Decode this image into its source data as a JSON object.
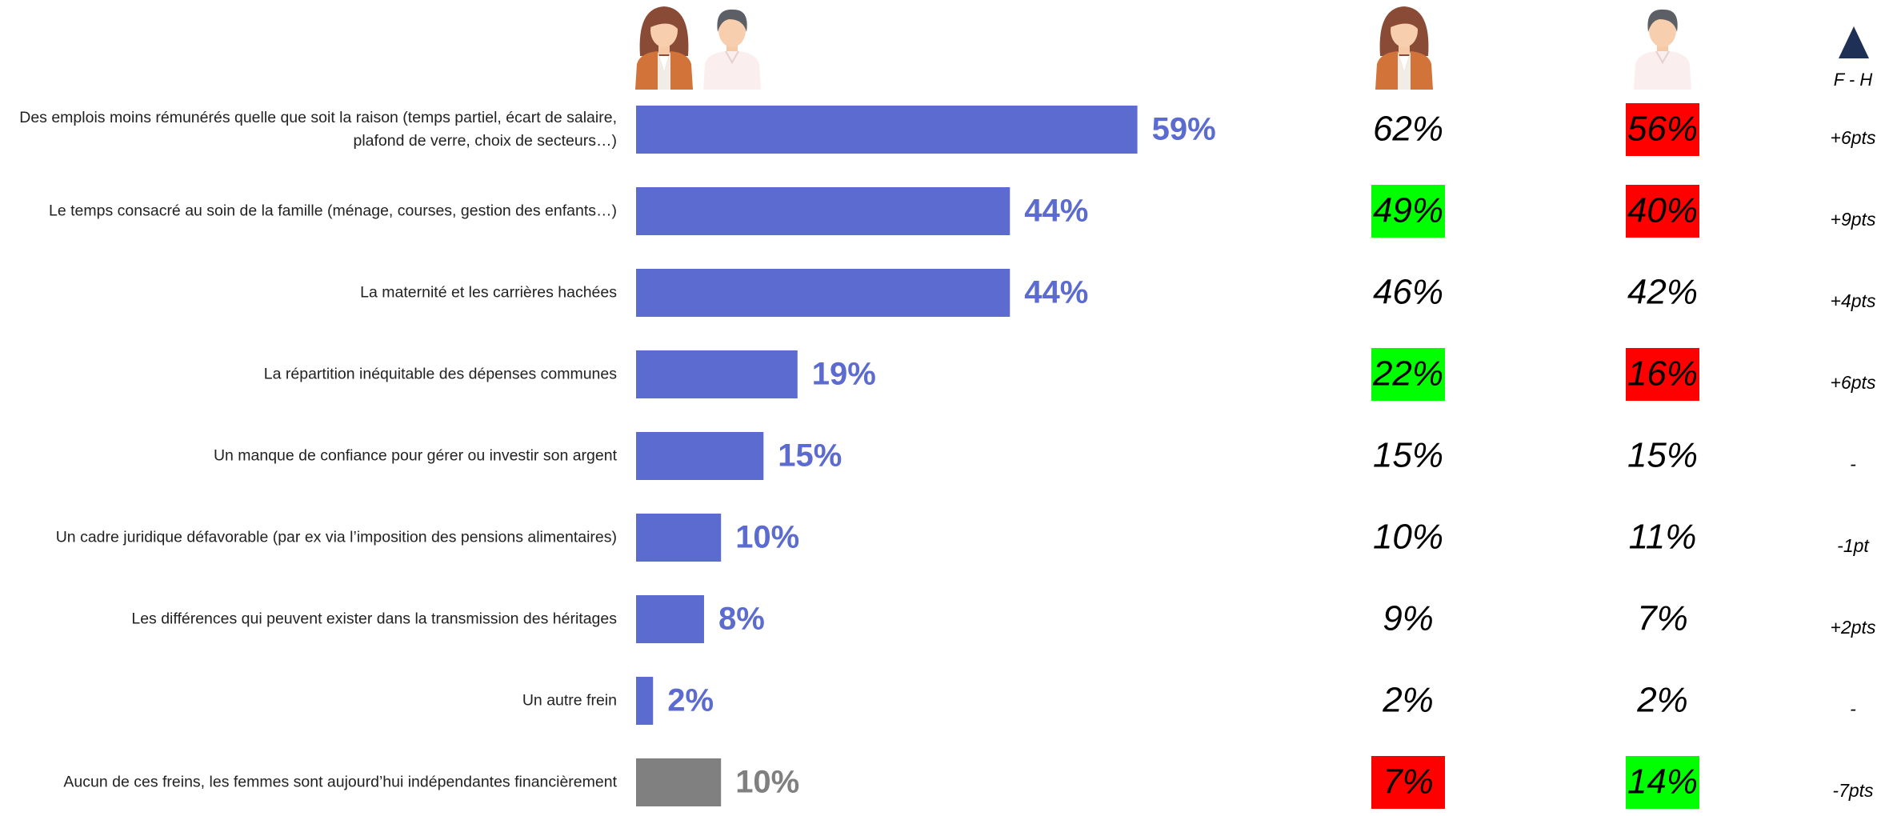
{
  "chart_data": {
    "type": "bar",
    "orientation": "horizontal",
    "categories": [
      "Des emplois moins rémunérés quelle que soit la raison (temps partiel, écart de salaire, plafond de verre, choix de secteurs…)",
      "Le temps consacré au soin de la famille (ménage, courses, gestion des enfants…)",
      "La maternité et les carrières hachées",
      "La répartition inéquitable des dépenses communes",
      "Un manque de confiance pour gérer ou investir son argent",
      "Un cadre juridique défavorable (par ex via l’imposition des pensions alimentaires)",
      "Les différences qui peuvent exister dans la transmission des héritages",
      "Un autre frein",
      "Aucun de ces freins, les femmes sont aujourd’hui indépendantes financièrement"
    ],
    "values": [
      59,
      44,
      44,
      19,
      15,
      10,
      8,
      2,
      10
    ],
    "value_labels": [
      "59%",
      "44%",
      "44%",
      "19%",
      "15%",
      "10%",
      "8%",
      "2%",
      "10%"
    ],
    "colors": [
      "#5b6bcf",
      "#5b6bcf",
      "#5b6bcf",
      "#5b6bcf",
      "#5b6bcf",
      "#5b6bcf",
      "#5b6bcf",
      "#5b6bcf",
      "#808080"
    ],
    "xlim": [
      0,
      100
    ]
  },
  "table": {
    "women": [
      "62%",
      "49%",
      "46%",
      "22%",
      "15%",
      "10%",
      "9%",
      "2%",
      "7%"
    ],
    "women_highlight": [
      null,
      "#00ff00",
      null,
      "#00ff00",
      null,
      null,
      null,
      null,
      "#ff0000"
    ],
    "men": [
      "56%",
      "40%",
      "42%",
      "16%",
      "15%",
      "11%",
      "7%",
      "2%",
      "14%"
    ],
    "men_highlight": [
      "#ff0000",
      "#ff0000",
      null,
      "#ff0000",
      null,
      null,
      null,
      null,
      "#00ff00"
    ],
    "diff_header": "F - H",
    "diff": [
      "+6pts",
      "+9pts",
      "+4pts",
      "+6pts",
      "-",
      "-1pt",
      "+2pts",
      "-",
      "-7pts"
    ]
  }
}
